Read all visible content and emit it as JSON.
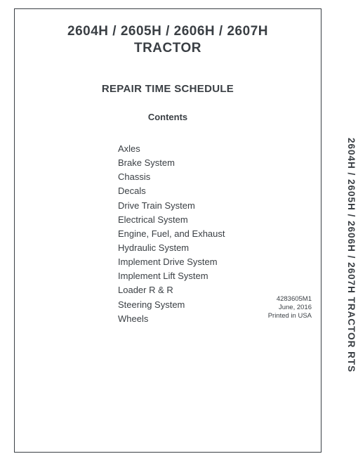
{
  "title": {
    "line1": "2604H / 2605H / 2606H / 2607H",
    "line2": "TRACTOR"
  },
  "subtitle": "REPAIR TIME SCHEDULE",
  "contents_heading": "Contents",
  "toc": [
    "Axles",
    "Brake System",
    "Chassis",
    "Decals",
    "Drive Train System",
    "Electrical System",
    "Engine, Fuel, and Exhaust",
    "Hydraulic System",
    "Implement Drive System",
    "Implement Lift System",
    "Loader R & R",
    "Steering System",
    "Wheels"
  ],
  "side_text": "2604H / 2605H / 2606H / 2607H TRACTOR RTS",
  "footer": {
    "doc_number": "4283605M1",
    "date": "June, 2016",
    "printed": "Printed in USA"
  },
  "colors": {
    "text": "#3a3f44",
    "background": "#ffffff",
    "border": "#3a3f44"
  }
}
